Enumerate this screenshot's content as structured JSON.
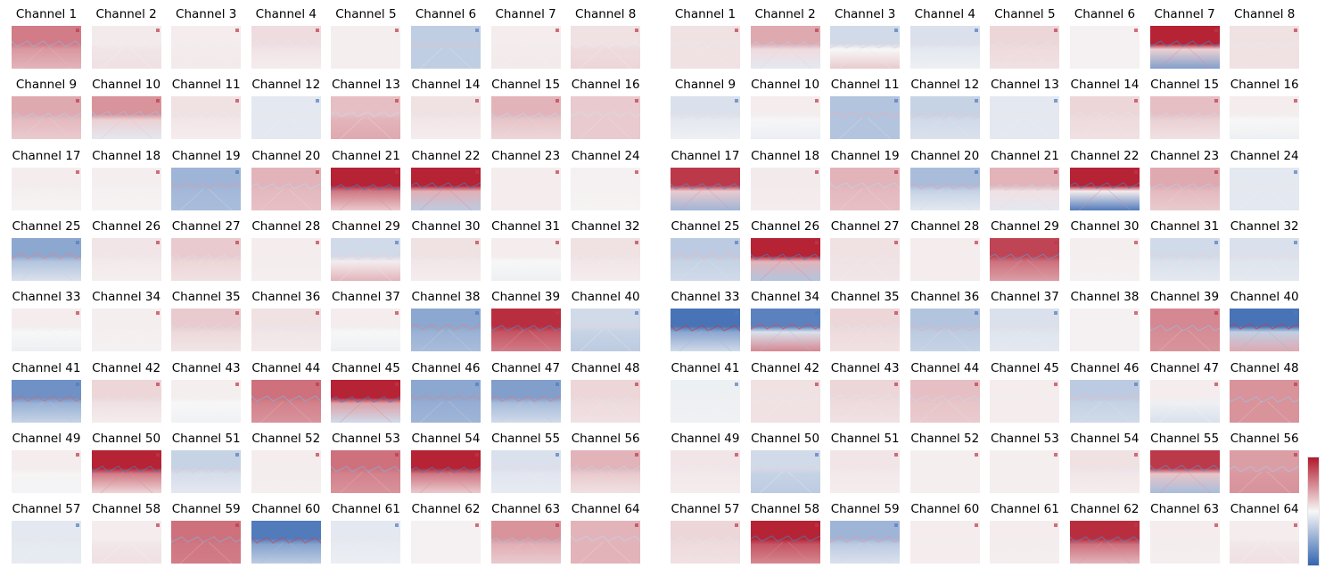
{
  "chart_data": {
    "type": "heatmap",
    "colormap": "coolwarm (blue - white - red)",
    "colors": {
      "neg": "#3465b0",
      "mid": "#f7f7f7",
      "pos": "#b2182b"
    },
    "panels": [
      {
        "titles": [
          "Channel 1",
          "Channel 2",
          "Channel 3",
          "Channel 4",
          "Channel 5",
          "Channel 6",
          "Channel 7",
          "Channel 8",
          "Channel 9",
          "Channel 10",
          "Channel 11",
          "Channel 12",
          "Channel 13",
          "Channel 14",
          "Channel 15",
          "Channel 16",
          "Channel 17",
          "Channel 18",
          "Channel 19",
          "Channel 20",
          "Channel 21",
          "Channel 22",
          "Channel 23",
          "Channel 24",
          "Channel 25",
          "Channel 26",
          "Channel 27",
          "Channel 28",
          "Channel 29",
          "Channel 30",
          "Channel 31",
          "Channel 32",
          "Channel 33",
          "Channel 34",
          "Channel 35",
          "Channel 36",
          "Channel 37",
          "Channel 38",
          "Channel 39",
          "Channel 40",
          "Channel 41",
          "Channel 42",
          "Channel 43",
          "Channel 44",
          "Channel 45",
          "Channel 46",
          "Channel 47",
          "Channel 48",
          "Channel 49",
          "Channel 50",
          "Channel 51",
          "Channel 52",
          "Channel 53",
          "Channel 54",
          "Channel 55",
          "Channel 56",
          "Channel 57",
          "Channel 58",
          "Channel 59",
          "Channel 60",
          "Channel 61",
          "Channel 62",
          "Channel 63",
          "Channel 64"
        ],
        "top_intensity": [
          0.55,
          0.06,
          0.05,
          0.12,
          0.04,
          -0.28,
          0.05,
          0.1,
          0.35,
          0.45,
          0.1,
          -0.1,
          0.25,
          0.1,
          0.3,
          0.2,
          0.05,
          0.04,
          -0.45,
          0.3,
          0.95,
          0.95,
          0.05,
          0.03,
          -0.55,
          0.08,
          0.2,
          0.05,
          -0.2,
          0.1,
          0.05,
          0.1,
          0.05,
          0.04,
          0.2,
          0.1,
          0.05,
          -0.55,
          0.9,
          -0.2,
          -0.7,
          0.15,
          0.04,
          0.6,
          0.95,
          -0.55,
          -0.6,
          0.15,
          0.05,
          0.95,
          -0.25,
          0.05,
          0.6,
          0.95,
          -0.15,
          0.3,
          -0.1,
          0.05,
          0.6,
          -0.85,
          -0.1,
          0.03,
          0.45,
          0.3
        ],
        "bottom_intensity": [
          0.3,
          0.1,
          0.06,
          0.05,
          0.04,
          -0.28,
          0.06,
          0.15,
          0.2,
          -0.1,
          0.05,
          -0.1,
          0.35,
          0.05,
          0.15,
          0.2,
          0.02,
          0.02,
          -0.4,
          0.25,
          0.2,
          -0.3,
          0.05,
          0.02,
          -0.15,
          0.04,
          0.1,
          0.04,
          0.3,
          0.05,
          -0.05,
          0.05,
          -0.05,
          0.03,
          0.08,
          0.06,
          -0.05,
          -0.4,
          0.55,
          -0.3,
          -0.25,
          0.05,
          -0.04,
          0.45,
          -0.2,
          -0.45,
          -0.2,
          0.1,
          -0.02,
          0.15,
          -0.1,
          0.04,
          0.45,
          0.2,
          -0.08,
          0.1,
          -0.08,
          0.1,
          0.55,
          -0.3,
          -0.06,
          0.03,
          0.2,
          0.3
        ]
      },
      {
        "titles": [
          "Channel 1",
          "Channel 2",
          "Channel 3",
          "Channel 4",
          "Channel 5",
          "Channel 6",
          "Channel 7",
          "Channel 8",
          "Channel 9",
          "Channel 10",
          "Channel 11",
          "Channel 12",
          "Channel 13",
          "Channel 14",
          "Channel 15",
          "Channel 16",
          "Channel 17",
          "Channel 18",
          "Channel 19",
          "Channel 20",
          "Channel 21",
          "Channel 22",
          "Channel 23",
          "Channel 24",
          "Channel 25",
          "Channel 26",
          "Channel 27",
          "Channel 28",
          "Channel 29",
          "Channel 30",
          "Channel 31",
          "Channel 32",
          "Channel 33",
          "Channel 34",
          "Channel 35",
          "Channel 36",
          "Channel 37",
          "Channel 38",
          "Channel 39",
          "Channel 40",
          "Channel 41",
          "Channel 42",
          "Channel 43",
          "Channel 44",
          "Channel 45",
          "Channel 46",
          "Channel 47",
          "Channel 48",
          "Channel 49",
          "Channel 50",
          "Channel 51",
          "Channel 52",
          "Channel 53",
          "Channel 54",
          "Channel 55",
          "Channel 56",
          "Channel 57",
          "Channel 58",
          "Channel 59",
          "Channel 60",
          "Channel 61",
          "Channel 62",
          "Channel 63",
          "Channel 64"
        ],
        "top_intensity": [
          0.1,
          0.35,
          -0.2,
          -0.15,
          0.15,
          0.03,
          0.95,
          0.1,
          -0.15,
          0.05,
          -0.35,
          -0.25,
          -0.1,
          0.15,
          0.25,
          0.05,
          0.85,
          0.06,
          0.3,
          -0.4,
          0.3,
          0.95,
          0.35,
          -0.1,
          -0.3,
          0.95,
          0.1,
          0.05,
          0.8,
          0.04,
          -0.2,
          -0.15,
          -0.9,
          -0.8,
          0.15,
          -0.35,
          -0.15,
          0.03,
          0.5,
          -0.9,
          -0.05,
          0.1,
          0.15,
          0.25,
          0.05,
          -0.3,
          0.05,
          0.45,
          0.08,
          -0.2,
          0.08,
          0.04,
          0.04,
          0.1,
          0.85,
          0.4,
          0.15,
          0.95,
          -0.45,
          0.05,
          0.05,
          0.9,
          0.05,
          0.05
        ],
        "bottom_intensity": [
          0.1,
          -0.1,
          0.2,
          -0.05,
          0.1,
          0.03,
          -0.6,
          0.1,
          -0.05,
          -0.06,
          -0.35,
          -0.15,
          -0.1,
          0.1,
          0.1,
          -0.05,
          -0.45,
          0.05,
          0.25,
          -0.1,
          -0.1,
          -0.85,
          0.2,
          -0.1,
          -0.2,
          -0.35,
          0.08,
          0.05,
          0.4,
          0.03,
          -0.1,
          -0.1,
          -0.2,
          0.5,
          0.1,
          -0.25,
          -0.1,
          0.03,
          0.45,
          0.35,
          -0.04,
          0.1,
          0.1,
          0.2,
          0.05,
          -0.2,
          -0.15,
          0.45,
          0.05,
          -0.3,
          0.05,
          0.04,
          0.04,
          0.05,
          -0.4,
          0.45,
          0.1,
          0.5,
          -0.15,
          0.05,
          0.04,
          0.3,
          0.04,
          0.1
        ]
      }
    ]
  }
}
